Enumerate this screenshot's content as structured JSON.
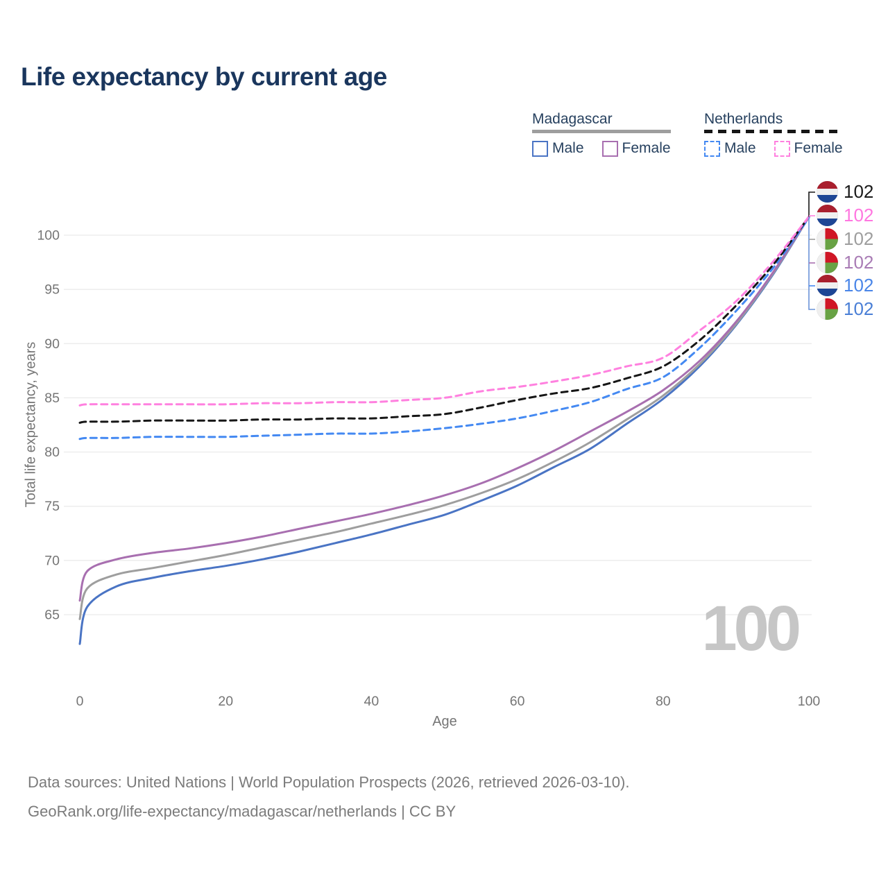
{
  "title": "Life expectancy by current age",
  "legend": {
    "madagascar": {
      "title": "Madagascar",
      "male": "Male",
      "female": "Female"
    },
    "netherlands": {
      "title": "Netherlands",
      "male": "Male",
      "female": "Female"
    }
  },
  "chart_data": {
    "type": "line",
    "title": "Life expectancy by current age",
    "xlabel": "Age",
    "ylabel": "Total life expectancy, years",
    "x": [
      0,
      1,
      5,
      10,
      15,
      20,
      25,
      30,
      35,
      40,
      45,
      50,
      55,
      60,
      65,
      70,
      75,
      80,
      85,
      90,
      95,
      100
    ],
    "xticks": [
      0,
      20,
      40,
      60,
      80,
      100
    ],
    "yticks": [
      65,
      70,
      75,
      80,
      85,
      90,
      95,
      100
    ],
    "xlim": [
      0,
      100
    ],
    "ylim": [
      62,
      103.5
    ],
    "grid": true,
    "legend_position": "top-right",
    "series": [
      {
        "key": "madagascar_male",
        "name": "Madagascar Male",
        "country": "Madagascar",
        "sex": "male",
        "style": "solid",
        "color": "#4a74c4",
        "values": [
          62.3,
          65.7,
          67.6,
          68.4,
          69.0,
          69.5,
          70.1,
          70.8,
          71.6,
          72.4,
          73.3,
          74.2,
          75.5,
          76.9,
          78.6,
          80.3,
          82.6,
          84.9,
          87.9,
          91.7,
          96.3,
          101.7
        ]
      },
      {
        "key": "madagascar_both",
        "name": "Madagascar Both sexes",
        "country": "Madagascar",
        "sex": "both",
        "style": "solid",
        "color": "#9e9e9e",
        "values": [
          64.6,
          67.4,
          68.7,
          69.3,
          69.9,
          70.5,
          71.2,
          71.9,
          72.6,
          73.4,
          74.2,
          75.1,
          76.2,
          77.5,
          79.1,
          80.9,
          83.0,
          85.2,
          88.1,
          91.8,
          96.4,
          101.7
        ]
      },
      {
        "key": "madagascar_female",
        "name": "Madagascar Female",
        "country": "Madagascar",
        "sex": "female",
        "style": "solid",
        "color": "#a86fb0",
        "values": [
          66.3,
          69.0,
          70.1,
          70.7,
          71.1,
          71.6,
          72.2,
          72.9,
          73.6,
          74.3,
          75.1,
          76.0,
          77.1,
          78.5,
          80.1,
          81.9,
          83.7,
          85.7,
          88.4,
          92.0,
          96.5,
          101.7
        ]
      },
      {
        "key": "netherlands_male",
        "name": "Netherlands Male",
        "country": "Netherlands",
        "sex": "male",
        "style": "dashed",
        "color": "#4489f2",
        "values": [
          81.2,
          81.3,
          81.3,
          81.4,
          81.4,
          81.4,
          81.5,
          81.6,
          81.7,
          81.7,
          81.9,
          82.2,
          82.6,
          83.1,
          83.8,
          84.6,
          85.8,
          86.9,
          89.6,
          93.0,
          96.9,
          101.6
        ]
      },
      {
        "key": "netherlands_both",
        "name": "Netherlands Both sexes",
        "country": "Netherlands",
        "sex": "both",
        "style": "dashed",
        "color": "#161616",
        "values": [
          82.7,
          82.8,
          82.8,
          82.9,
          82.9,
          82.9,
          83.0,
          83.0,
          83.1,
          83.1,
          83.3,
          83.5,
          84.1,
          84.8,
          85.4,
          85.9,
          86.8,
          87.9,
          90.3,
          93.5,
          97.2,
          101.7
        ]
      },
      {
        "key": "netherlands_female",
        "name": "Netherlands Female",
        "country": "Netherlands",
        "sex": "female",
        "style": "dashed",
        "color": "#ff80df",
        "values": [
          84.3,
          84.4,
          84.4,
          84.4,
          84.4,
          84.4,
          84.5,
          84.5,
          84.6,
          84.6,
          84.8,
          85.0,
          85.6,
          86.0,
          86.5,
          87.1,
          87.9,
          88.7,
          91.2,
          93.9,
          97.5,
          101.7
        ]
      }
    ]
  },
  "end_labels": [
    {
      "country": "netherlands",
      "series": "netherlands_both",
      "value": "102",
      "color": "#1a1a1a"
    },
    {
      "country": "netherlands",
      "series": "netherlands_female",
      "value": "102",
      "color": "#ff77e0"
    },
    {
      "country": "madagascar",
      "series": "madagascar_both",
      "value": "102",
      "color": "#9e9e9e"
    },
    {
      "country": "madagascar",
      "series": "madagascar_female",
      "value": "102",
      "color": "#a97cb5"
    },
    {
      "country": "netherlands",
      "series": "netherlands_male",
      "value": "102",
      "color": "#4a86e8"
    },
    {
      "country": "madagascar",
      "series": "madagascar_male",
      "value": "102",
      "color": "#4a7fd6"
    }
  ],
  "watermark": "100",
  "footer": {
    "line1": "Data sources: United Nations | World Population Prospects (2026, retrieved 2026-03-10).",
    "line2": "GeoRank.org/life-expectancy/madagascar/netherlands | CC BY"
  },
  "colors": {
    "madagascar_male": "#4a74c4",
    "madagascar_female": "#a86fb0",
    "madagascar_both": "#9e9e9e",
    "netherlands_male": "#4489f2",
    "netherlands_female": "#ff80df",
    "netherlands_both": "#161616",
    "title_text": "#1a365d",
    "axis_text": "#757575",
    "footer_text": "#7b7b7b",
    "grid": "#e9e9e9",
    "watermark": "#c6c6c6"
  }
}
